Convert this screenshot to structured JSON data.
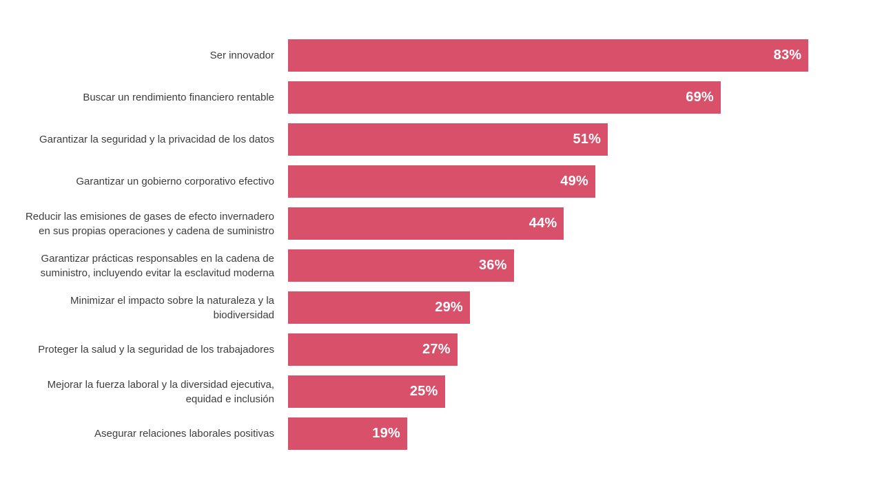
{
  "chart_data": {
    "type": "bar",
    "orientation": "horizontal",
    "title": "",
    "xlabel": "",
    "ylabel": "",
    "xlim": [
      0,
      100
    ],
    "grid": false,
    "legend": false,
    "bar_color": "#d9506a",
    "value_label_color": "#ffffff",
    "category_label_color": "#3d3d3d",
    "categories": [
      "Ser innovador",
      "Buscar un rendimiento financiero rentable",
      "Garantizar la seguridad y la privacidad de los datos",
      "Garantizar un gobierno corporativo efectivo",
      "Reducir las emisiones de gases de efecto invernadero\nen sus propias operaciones y cadena de suministro",
      "Garantizar prácticas responsables en la cadena de\nsuministro, incluyendo evitar la esclavitud moderna",
      "Minimizar el impacto sobre la naturaleza y la\nbiodiversidad",
      "Proteger la salud y la seguridad de los trabajadores",
      "Mejorar la fuerza laboral y la diversidad ejecutiva,\nequidad e inclusión",
      "Asegurar relaciones laborales positivas"
    ],
    "values": [
      83,
      69,
      51,
      49,
      44,
      36,
      29,
      27,
      25,
      19
    ],
    "value_labels": [
      "83%",
      "69%",
      "51%",
      "49%",
      "44%",
      "36%",
      "29%",
      "27%",
      "25%",
      "19%"
    ]
  }
}
